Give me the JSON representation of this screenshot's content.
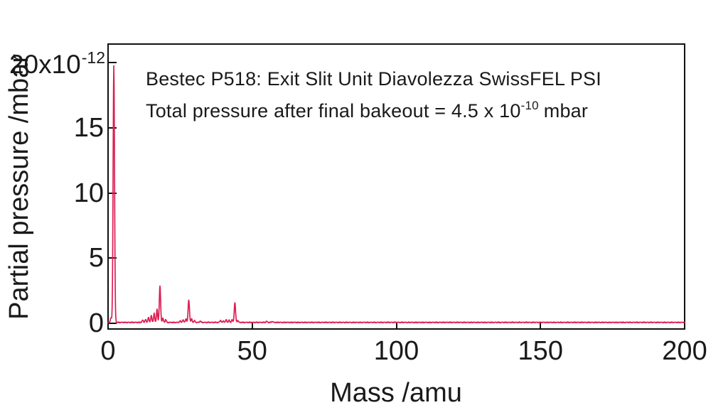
{
  "figure": {
    "title_line1": "Bestec P518: Exit Slit Unit Diavolezza SwissFEL PSI",
    "title_line2": {
      "prefix": "Total pressure after final bakeout = 4.5 x 10",
      "exponent": "-10",
      "suffix": "mbar"
    },
    "y_axis": {
      "label": "Partial pressure /mbar",
      "top_tick": {
        "mantissa": "20x10",
        "exponent": "-12"
      },
      "tick_labels": [
        "0",
        "5",
        "10",
        "15"
      ]
    },
    "x_axis": {
      "label": "Mass /amu",
      "tick_labels": [
        "0",
        "50",
        "100",
        "150",
        "200"
      ]
    },
    "colors": {
      "line": "#dc1f53",
      "frame": "#111111",
      "text": "#1a1a1a",
      "background": "#ffffff"
    }
  },
  "chart_data": {
    "type": "line",
    "title": "Bestec P518: Exit Slit Unit Diavolezza SwissFEL PSI",
    "subtitle": "Total pressure after final bakeout = 4.5 x 10^-10 mbar",
    "xlabel": "Mass /amu",
    "ylabel": "Partial pressure /mbar",
    "xlim": [
      0,
      200
    ],
    "x_ticks": [
      0,
      50,
      100,
      150,
      200
    ],
    "y_ticks_e12": [
      0,
      5,
      10,
      15,
      20
    ],
    "y_unit": "1e-12 mbar",
    "ylim_e12": [
      0,
      20
    ],
    "grid": false,
    "legend": "none",
    "baseline_e12": 0.07,
    "noise_amplitude_e12": 0.045,
    "peaks_e12": [
      {
        "mass": 1,
        "height": 0.35,
        "width": 0.28
      },
      {
        "mass": 2,
        "height": 19.7,
        "width": 0.35
      },
      {
        "mass": 12,
        "height": 0.18,
        "width": 0.28
      },
      {
        "mass": 13,
        "height": 0.22,
        "width": 0.28
      },
      {
        "mass": 14,
        "height": 0.4,
        "width": 0.28
      },
      {
        "mass": 15,
        "height": 0.55,
        "width": 0.28
      },
      {
        "mass": 16,
        "height": 0.7,
        "width": 0.28
      },
      {
        "mass": 17,
        "height": 1.0,
        "width": 0.28
      },
      {
        "mass": 18,
        "height": 2.78,
        "width": 0.32
      },
      {
        "mass": 19,
        "height": 0.32,
        "width": 0.28
      },
      {
        "mass": 20,
        "height": 0.22,
        "width": 0.28
      },
      {
        "mass": 25,
        "height": 0.12,
        "width": 0.28
      },
      {
        "mass": 26,
        "height": 0.2,
        "width": 0.28
      },
      {
        "mass": 27,
        "height": 0.28,
        "width": 0.28
      },
      {
        "mass": 28,
        "height": 1.72,
        "width": 0.32
      },
      {
        "mass": 29,
        "height": 0.27,
        "width": 0.28
      },
      {
        "mass": 30,
        "height": 0.12,
        "width": 0.28
      },
      {
        "mass": 32,
        "height": 0.1,
        "width": 0.28
      },
      {
        "mass": 39,
        "height": 0.16,
        "width": 0.28
      },
      {
        "mass": 40,
        "height": 0.12,
        "width": 0.28
      },
      {
        "mass": 41,
        "height": 0.2,
        "width": 0.28
      },
      {
        "mass": 42,
        "height": 0.16,
        "width": 0.28
      },
      {
        "mass": 43,
        "height": 0.2,
        "width": 0.28
      },
      {
        "mass": 44,
        "height": 1.52,
        "width": 0.32
      },
      {
        "mass": 45,
        "height": 0.16,
        "width": 0.28
      },
      {
        "mass": 55,
        "height": 0.08,
        "width": 0.3
      },
      {
        "mass": 57,
        "height": 0.07,
        "width": 0.3
      }
    ]
  }
}
